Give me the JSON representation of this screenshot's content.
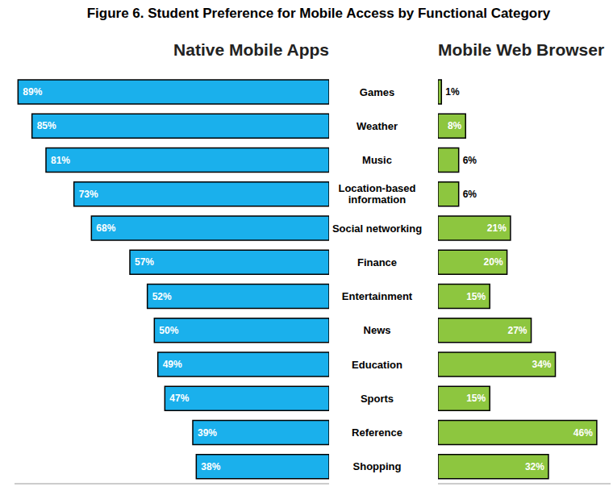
{
  "title": "Figure 6. Student Preference for Mobile Access by Functional Category",
  "chart_data": [
    {
      "type": "bar",
      "orientation": "horizontal",
      "title": "Native Mobile Apps",
      "categories": [
        "Games",
        "Weather",
        "Music",
        "Location-based information",
        "Social networking",
        "Finance",
        "Entertainment",
        "News",
        "Education",
        "Sports",
        "Reference",
        "Shopping"
      ],
      "values": [
        89,
        85,
        81,
        73,
        68,
        57,
        52,
        50,
        49,
        47,
        39,
        38
      ],
      "value_labels": [
        "89%",
        "85%",
        "81%",
        "73%",
        "68%",
        "57%",
        "52%",
        "50%",
        "49%",
        "47%",
        "39%",
        "38%"
      ],
      "color": "#1ab0ec",
      "xlim": [
        0,
        90
      ],
      "data_labels": true,
      "tick_labels": false
    },
    {
      "type": "bar",
      "orientation": "horizontal",
      "title": "Mobile Web Browser",
      "categories": [
        "Games",
        "Weather",
        "Music",
        "Location-based information",
        "Social networking",
        "Finance",
        "Entertainment",
        "News",
        "Education",
        "Sports",
        "Reference",
        "Shopping"
      ],
      "values": [
        1,
        8,
        6,
        6,
        21,
        20,
        15,
        27,
        34,
        15,
        46,
        32
      ],
      "value_labels": [
        "1%",
        "8%",
        "6%",
        "6%",
        "21%",
        "20%",
        "15%",
        "27%",
        "34%",
        "15%",
        "46%",
        "32%"
      ],
      "color": "#8dc63f",
      "xlim": [
        0,
        50
      ],
      "data_labels": true,
      "tick_labels": "y"
    }
  ]
}
